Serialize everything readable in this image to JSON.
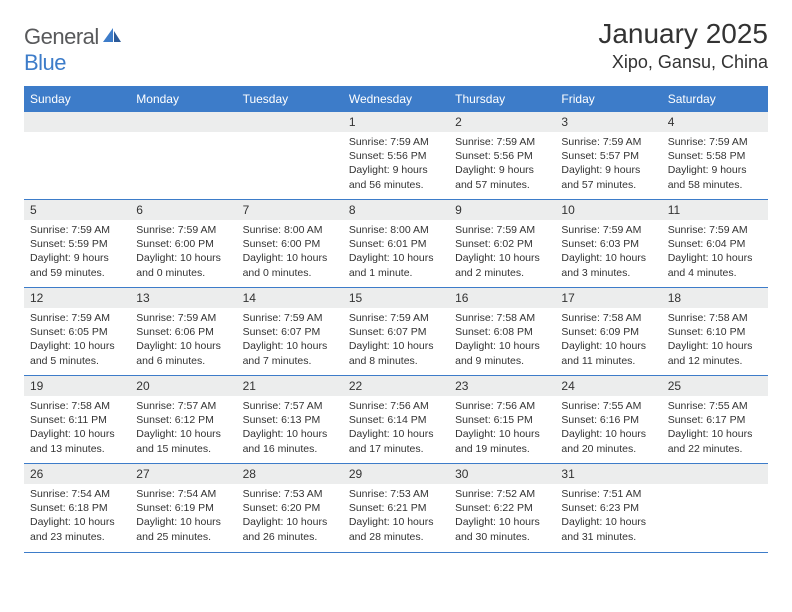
{
  "logo": {
    "text_general": "General",
    "text_blue": "Blue"
  },
  "title": "January 2025",
  "location": "Xipo, Gansu, China",
  "colors": {
    "header_bg": "#3d7cc9",
    "header_text": "#ffffff",
    "daynum_bg": "#eceded",
    "border": "#3d7cc9",
    "body_text": "#333333",
    "logo_gray": "#58595b",
    "logo_blue": "#3d7cc9",
    "page_bg": "#ffffff"
  },
  "day_labels": [
    "Sunday",
    "Monday",
    "Tuesday",
    "Wednesday",
    "Thursday",
    "Friday",
    "Saturday"
  ],
  "weeks": [
    [
      {
        "n": "",
        "sr": "",
        "ss": "",
        "dl": ""
      },
      {
        "n": "",
        "sr": "",
        "ss": "",
        "dl": ""
      },
      {
        "n": "",
        "sr": "",
        "ss": "",
        "dl": ""
      },
      {
        "n": "1",
        "sr": "7:59 AM",
        "ss": "5:56 PM",
        "dl": "9 hours and 56 minutes."
      },
      {
        "n": "2",
        "sr": "7:59 AM",
        "ss": "5:56 PM",
        "dl": "9 hours and 57 minutes."
      },
      {
        "n": "3",
        "sr": "7:59 AM",
        "ss": "5:57 PM",
        "dl": "9 hours and 57 minutes."
      },
      {
        "n": "4",
        "sr": "7:59 AM",
        "ss": "5:58 PM",
        "dl": "9 hours and 58 minutes."
      }
    ],
    [
      {
        "n": "5",
        "sr": "7:59 AM",
        "ss": "5:59 PM",
        "dl": "9 hours and 59 minutes."
      },
      {
        "n": "6",
        "sr": "7:59 AM",
        "ss": "6:00 PM",
        "dl": "10 hours and 0 minutes."
      },
      {
        "n": "7",
        "sr": "8:00 AM",
        "ss": "6:00 PM",
        "dl": "10 hours and 0 minutes."
      },
      {
        "n": "8",
        "sr": "8:00 AM",
        "ss": "6:01 PM",
        "dl": "10 hours and 1 minute."
      },
      {
        "n": "9",
        "sr": "7:59 AM",
        "ss": "6:02 PM",
        "dl": "10 hours and 2 minutes."
      },
      {
        "n": "10",
        "sr": "7:59 AM",
        "ss": "6:03 PM",
        "dl": "10 hours and 3 minutes."
      },
      {
        "n": "11",
        "sr": "7:59 AM",
        "ss": "6:04 PM",
        "dl": "10 hours and 4 minutes."
      }
    ],
    [
      {
        "n": "12",
        "sr": "7:59 AM",
        "ss": "6:05 PM",
        "dl": "10 hours and 5 minutes."
      },
      {
        "n": "13",
        "sr": "7:59 AM",
        "ss": "6:06 PM",
        "dl": "10 hours and 6 minutes."
      },
      {
        "n": "14",
        "sr": "7:59 AM",
        "ss": "6:07 PM",
        "dl": "10 hours and 7 minutes."
      },
      {
        "n": "15",
        "sr": "7:59 AM",
        "ss": "6:07 PM",
        "dl": "10 hours and 8 minutes."
      },
      {
        "n": "16",
        "sr": "7:58 AM",
        "ss": "6:08 PM",
        "dl": "10 hours and 9 minutes."
      },
      {
        "n": "17",
        "sr": "7:58 AM",
        "ss": "6:09 PM",
        "dl": "10 hours and 11 minutes."
      },
      {
        "n": "18",
        "sr": "7:58 AM",
        "ss": "6:10 PM",
        "dl": "10 hours and 12 minutes."
      }
    ],
    [
      {
        "n": "19",
        "sr": "7:58 AM",
        "ss": "6:11 PM",
        "dl": "10 hours and 13 minutes."
      },
      {
        "n": "20",
        "sr": "7:57 AM",
        "ss": "6:12 PM",
        "dl": "10 hours and 15 minutes."
      },
      {
        "n": "21",
        "sr": "7:57 AM",
        "ss": "6:13 PM",
        "dl": "10 hours and 16 minutes."
      },
      {
        "n": "22",
        "sr": "7:56 AM",
        "ss": "6:14 PM",
        "dl": "10 hours and 17 minutes."
      },
      {
        "n": "23",
        "sr": "7:56 AM",
        "ss": "6:15 PM",
        "dl": "10 hours and 19 minutes."
      },
      {
        "n": "24",
        "sr": "7:55 AM",
        "ss": "6:16 PM",
        "dl": "10 hours and 20 minutes."
      },
      {
        "n": "25",
        "sr": "7:55 AM",
        "ss": "6:17 PM",
        "dl": "10 hours and 22 minutes."
      }
    ],
    [
      {
        "n": "26",
        "sr": "7:54 AM",
        "ss": "6:18 PM",
        "dl": "10 hours and 23 minutes."
      },
      {
        "n": "27",
        "sr": "7:54 AM",
        "ss": "6:19 PM",
        "dl": "10 hours and 25 minutes."
      },
      {
        "n": "28",
        "sr": "7:53 AM",
        "ss": "6:20 PM",
        "dl": "10 hours and 26 minutes."
      },
      {
        "n": "29",
        "sr": "7:53 AM",
        "ss": "6:21 PM",
        "dl": "10 hours and 28 minutes."
      },
      {
        "n": "30",
        "sr": "7:52 AM",
        "ss": "6:22 PM",
        "dl": "10 hours and 30 minutes."
      },
      {
        "n": "31",
        "sr": "7:51 AM",
        "ss": "6:23 PM",
        "dl": "10 hours and 31 minutes."
      },
      {
        "n": "",
        "sr": "",
        "ss": "",
        "dl": ""
      }
    ]
  ],
  "labels": {
    "sunrise": "Sunrise:",
    "sunset": "Sunset:",
    "daylight": "Daylight:"
  }
}
